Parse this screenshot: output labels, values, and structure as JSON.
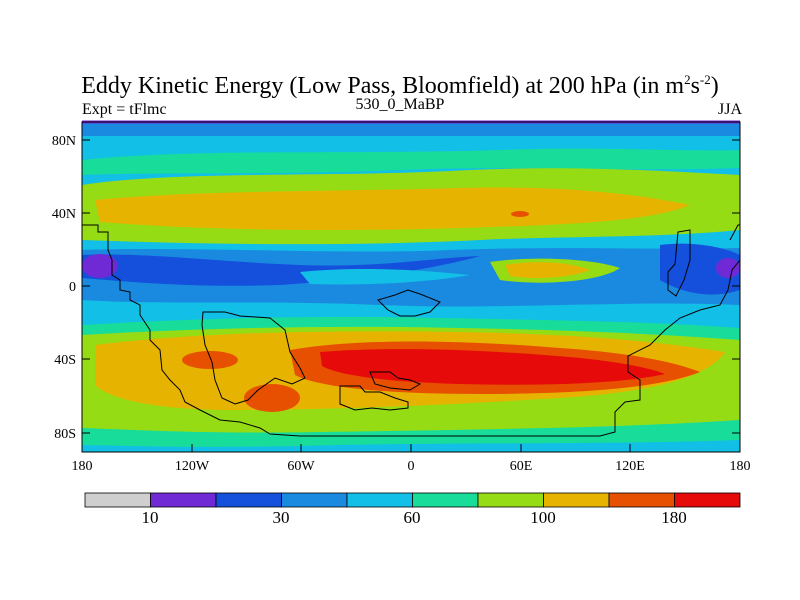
{
  "title": "Eddy Kinetic Energy (Low Pass, Bloomfield) at 200 hPa (in m",
  "title_unit_sup1": "2",
  "title_unit_mid": "s",
  "title_unit_sup2": "-2",
  "title_end": ")",
  "left_label": "Expt = tFlmc",
  "center_label": "530_0_MaBP",
  "right_label": "JJA",
  "map": {
    "lat_ticks": [
      "80N",
      "40N",
      "0",
      "40S",
      "80S"
    ],
    "lon_ticks": [
      "180",
      "120W",
      "60W",
      "0",
      "60E",
      "120E",
      "180"
    ]
  },
  "colorbar": {
    "colors": [
      "#cfcfcf",
      "#6f2ad6",
      "#1450dc",
      "#1a8ae0",
      "#12bfe6",
      "#18dc9a",
      "#96dc14",
      "#e6b400",
      "#e65000",
      "#e60a0a"
    ],
    "labels": [
      "10",
      "30",
      "60",
      "100",
      "180"
    ]
  }
}
